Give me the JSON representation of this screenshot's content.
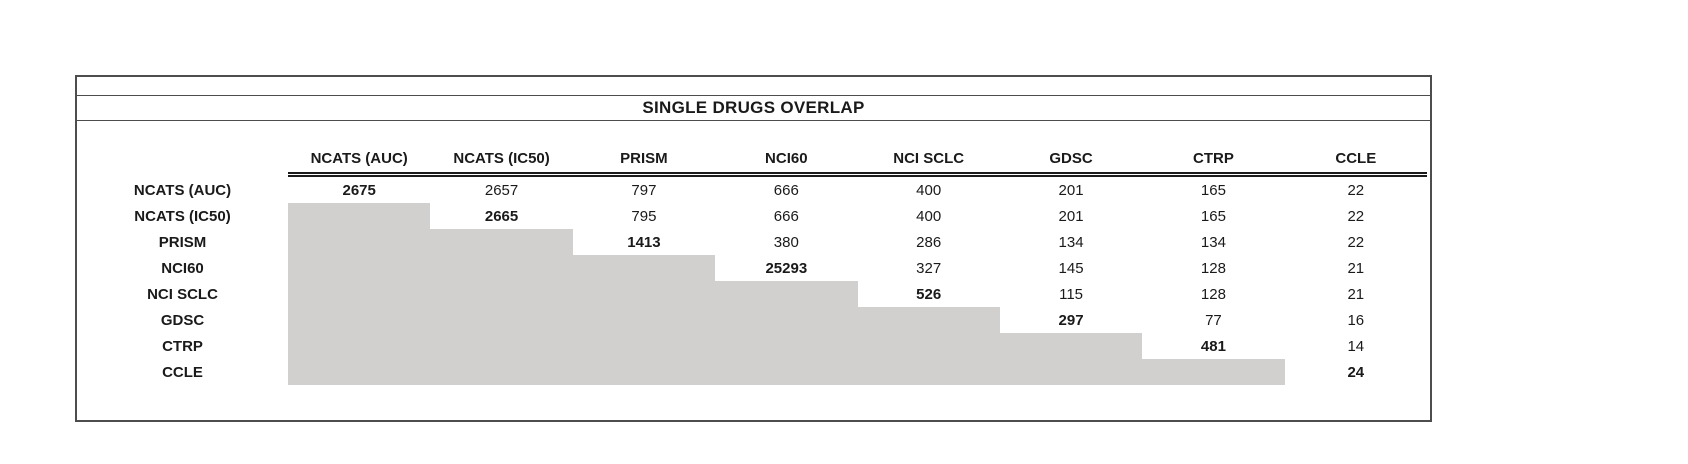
{
  "title": "SINGLE DRUGS OVERLAP",
  "table": {
    "columns": [
      "NCATS (AUC)",
      "NCATS (IC50)",
      "PRISM",
      "NCI60",
      "NCI SCLC",
      "GDSC",
      "CTRP",
      "CCLE"
    ],
    "rows": [
      {
        "label": "NCATS (AUC)",
        "values": [
          2675,
          2657,
          797,
          666,
          400,
          201,
          165,
          22
        ]
      },
      {
        "label": "NCATS (IC50)",
        "values": [
          null,
          2665,
          795,
          666,
          400,
          201,
          165,
          22
        ]
      },
      {
        "label": "PRISM",
        "values": [
          null,
          null,
          1413,
          380,
          286,
          134,
          134,
          22
        ]
      },
      {
        "label": "NCI60",
        "values": [
          null,
          null,
          null,
          25293,
          327,
          145,
          128,
          21
        ]
      },
      {
        "label": "NCI SCLC",
        "values": [
          null,
          null,
          null,
          null,
          526,
          115,
          128,
          21
        ]
      },
      {
        "label": "GDSC",
        "values": [
          null,
          null,
          null,
          null,
          null,
          297,
          77,
          16
        ]
      },
      {
        "label": "CTRP",
        "values": [
          null,
          null,
          null,
          null,
          null,
          null,
          481,
          14
        ]
      },
      {
        "label": "CCLE",
        "values": [
          null,
          null,
          null,
          null,
          null,
          null,
          null,
          24
        ]
      }
    ],
    "shaded_cell_color": "#d1d0cf",
    "diagonal_values_bold": true
  },
  "colors": {
    "background": "#ffffff",
    "frame_border": "#4d4d4d",
    "header_underline": "#1a1a1a",
    "text": "#1a1a1a"
  },
  "chart_data": {
    "type": "table",
    "title": "SINGLE DRUGS OVERLAP",
    "description": "Upper-triangular overlap matrix of single drug counts between screening datasets; diagonal (bold) is the dataset's own drug count; lower triangle is shaded gray.",
    "columns": [
      "NCATS (AUC)",
      "NCATS (IC50)",
      "PRISM",
      "NCI60",
      "NCI SCLC",
      "GDSC",
      "CTRP",
      "CCLE"
    ],
    "row_labels": [
      "NCATS (AUC)",
      "NCATS (IC50)",
      "PRISM",
      "NCI60",
      "NCI SCLC",
      "GDSC",
      "CTRP",
      "CCLE"
    ],
    "matrix": [
      [
        2675,
        2657,
        797,
        666,
        400,
        201,
        165,
        22
      ],
      [
        null,
        2665,
        795,
        666,
        400,
        201,
        165,
        22
      ],
      [
        null,
        null,
        1413,
        380,
        286,
        134,
        134,
        22
      ],
      [
        null,
        null,
        null,
        25293,
        327,
        145,
        128,
        21
      ],
      [
        null,
        null,
        null,
        null,
        526,
        115,
        128,
        21
      ],
      [
        null,
        null,
        null,
        null,
        null,
        297,
        77,
        16
      ],
      [
        null,
        null,
        null,
        null,
        null,
        null,
        481,
        14
      ],
      [
        null,
        null,
        null,
        null,
        null,
        null,
        null,
        24
      ]
    ],
    "diagonal": [
      2675,
      2665,
      1413,
      25293,
      526,
      297,
      481,
      24
    ],
    "legend_position": "none",
    "grid": false
  }
}
